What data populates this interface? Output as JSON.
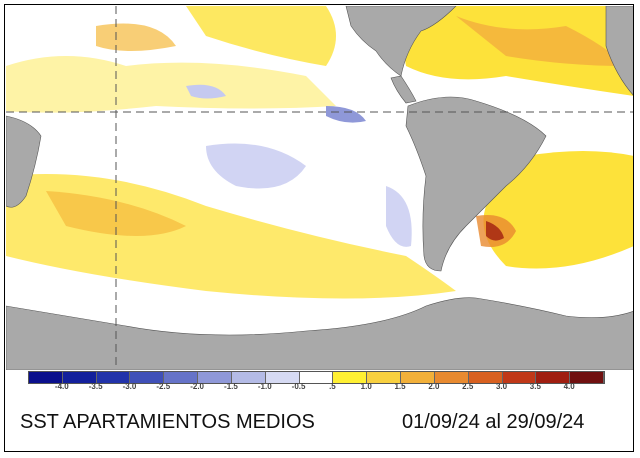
{
  "title": "SST APARTAMIENTOS MEDIOS",
  "period": "01/09/24 al 29/09/24",
  "colorbar": {
    "labels": [
      "-4.0",
      "-3.5",
      "-3.0",
      "-2.5",
      "-2.0",
      "-1.5",
      "-1.0",
      "-0.5",
      ".5",
      "1.0",
      "1.5",
      "2.0",
      "2.5",
      "3.0",
      "3.5",
      "4.0"
    ],
    "colors": [
      "#0a0f8c",
      "#13209c",
      "#2233aa",
      "#4050b8",
      "#6673c8",
      "#8f98d8",
      "#b4bbe6",
      "#d6daf3",
      "#ffffff",
      "#fff033",
      "#f8d040",
      "#f2b03a",
      "#e88a30",
      "#d86020",
      "#c03818",
      "#a01e10",
      "#701010"
    ]
  },
  "colors": {
    "land": "#a9a9a9",
    "ocean": "#ffffff",
    "warm": "#fde23a",
    "warmer": "#f5b93c",
    "cool": "#c5c9f0"
  }
}
